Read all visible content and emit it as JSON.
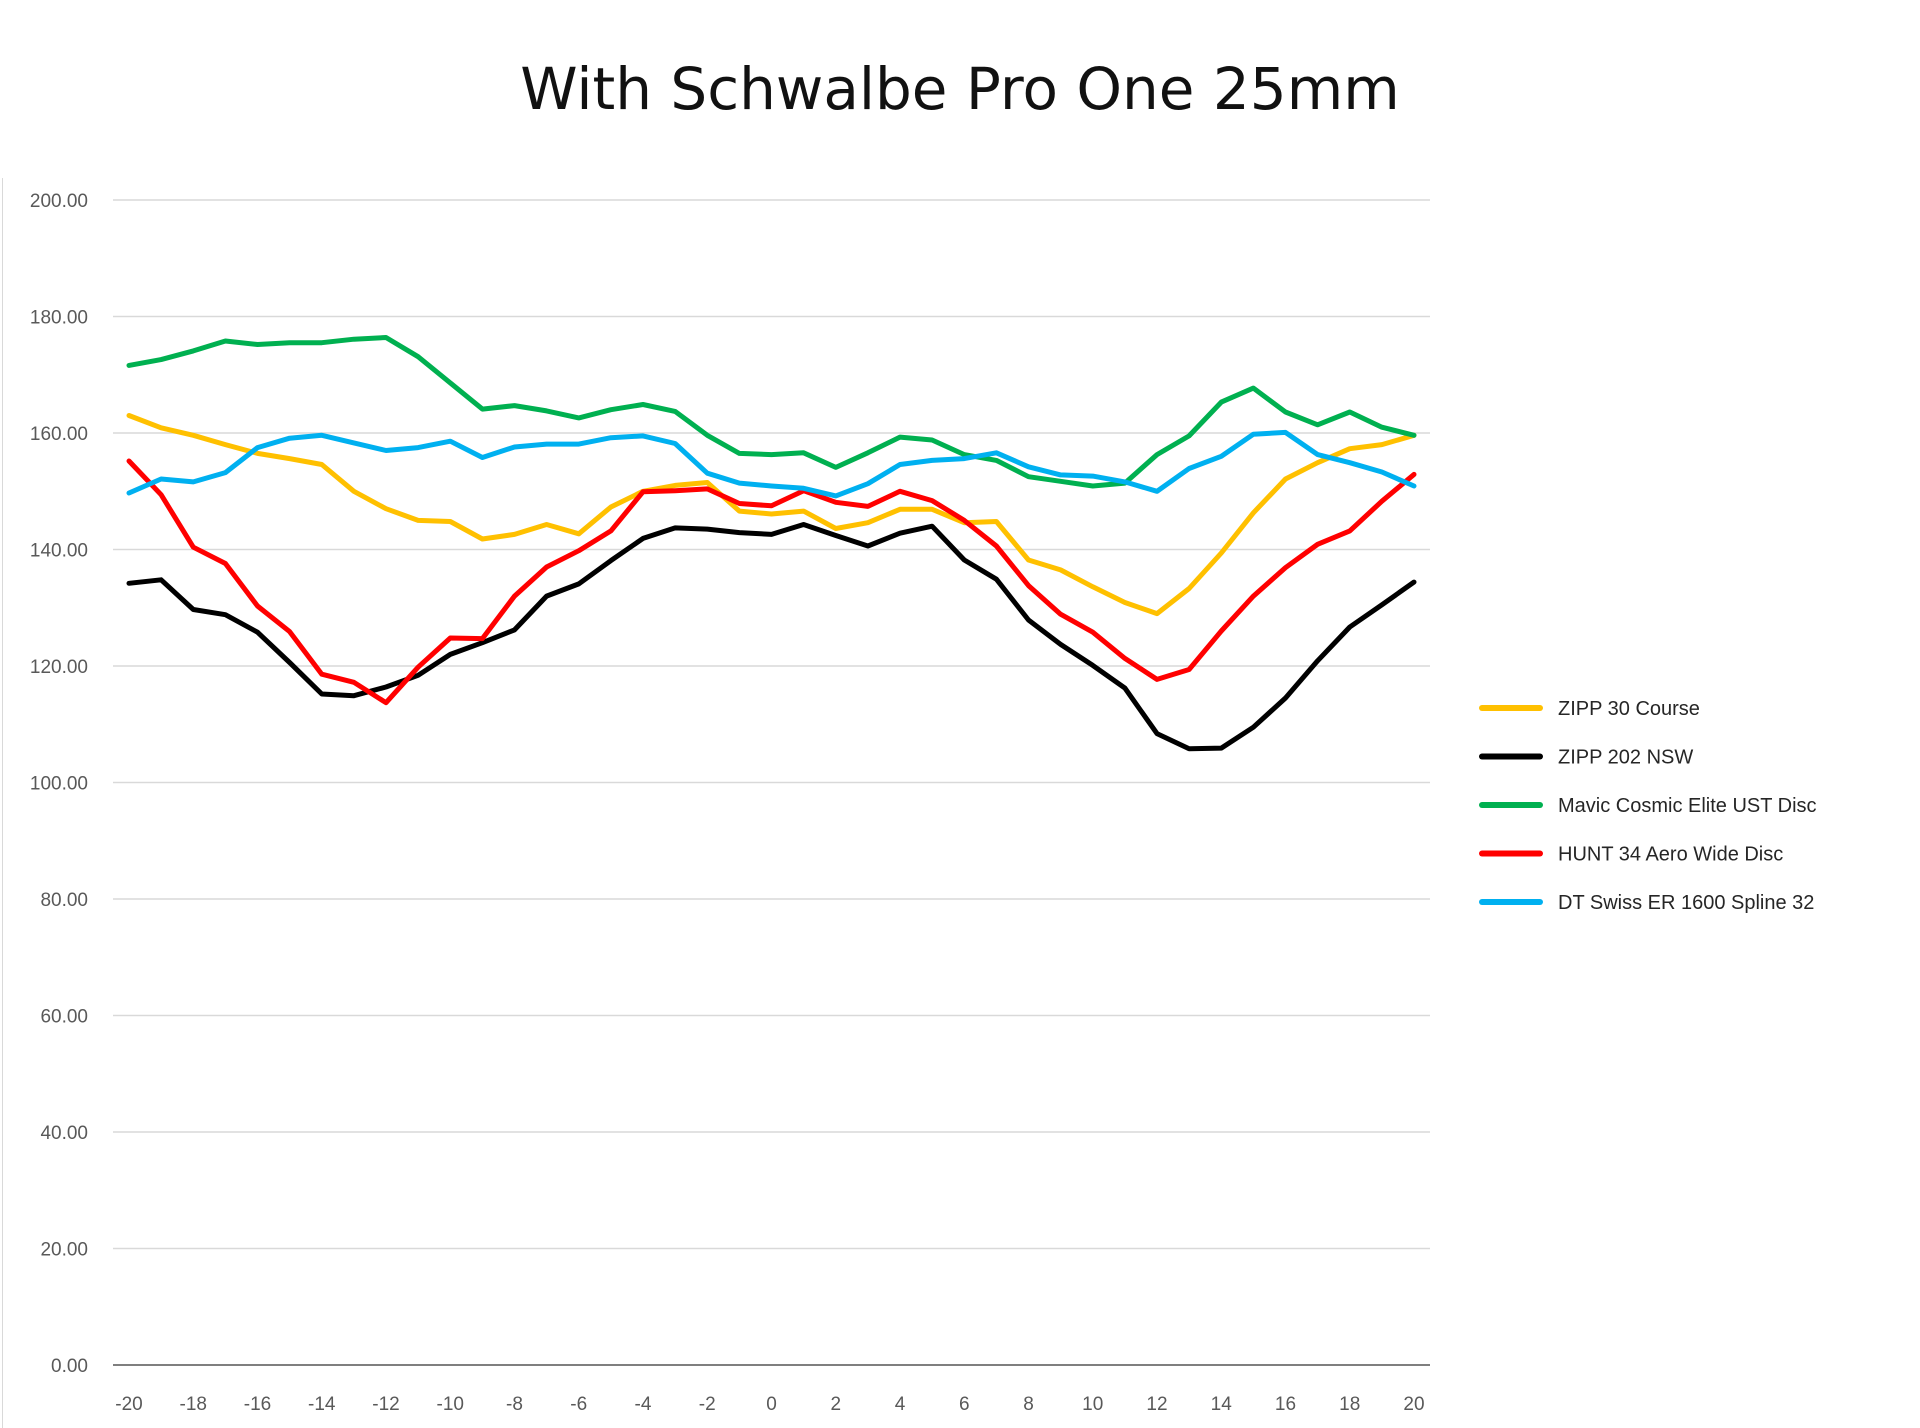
{
  "chart_data": {
    "type": "line",
    "title": "With Schwalbe Pro One 25mm",
    "xlabel": "",
    "ylabel": "",
    "ylim": [
      0,
      200
    ],
    "xlim": [
      -20,
      20
    ],
    "y_ticks": [
      "0.00",
      "20.00",
      "40.00",
      "60.00",
      "80.00",
      "100.00",
      "120.00",
      "140.00",
      "160.00",
      "180.00",
      "200.00"
    ],
    "x_ticks": [
      "-20",
      "-18",
      "-16",
      "-14",
      "-12",
      "-10",
      "-8",
      "-6",
      "-4",
      "-2",
      "0",
      "2",
      "4",
      "6",
      "8",
      "10",
      "12",
      "14",
      "16",
      "18",
      "20"
    ],
    "grid": "horizontal",
    "legend_position": "right",
    "x": [
      -20,
      -19,
      -18,
      -17,
      -16,
      -15,
      -14,
      -13,
      -12,
      -11,
      -10,
      -9,
      -8,
      -7,
      -6,
      -5,
      -4,
      -3,
      -2,
      -1,
      0,
      1,
      2,
      3,
      4,
      5,
      6,
      7,
      8,
      9,
      10,
      11,
      12,
      13,
      14,
      15,
      16,
      17,
      18,
      19,
      20
    ],
    "series": [
      {
        "name": "ZIPP 30 Course",
        "color": "#ffc000",
        "values": [
          163.0,
          160.9,
          159.6,
          158.0,
          156.5,
          155.6,
          154.6,
          150.0,
          147.0,
          145.0,
          144.8,
          141.8,
          142.6,
          144.3,
          142.7,
          147.3,
          150.0,
          151.0,
          151.5,
          146.6,
          146.1,
          146.6,
          143.6,
          144.6,
          146.9,
          146.9,
          144.6,
          144.8,
          138.2,
          136.5,
          133.6,
          130.9,
          129.0,
          133.3,
          139.4,
          146.3,
          152.1,
          154.9,
          157.3,
          158.0,
          159.6
        ]
      },
      {
        "name": "ZIPP 202 NSW",
        "color": "#000000",
        "values": [
          134.2,
          134.8,
          129.7,
          128.8,
          125.8,
          120.6,
          115.2,
          114.9,
          116.4,
          118.4,
          122.0,
          124.0,
          126.2,
          132.0,
          134.1,
          138.1,
          141.9,
          143.7,
          143.5,
          142.9,
          142.6,
          144.3,
          142.4,
          140.6,
          142.8,
          144.0,
          138.2,
          134.9,
          127.9,
          123.7,
          120.1,
          116.2,
          108.4,
          105.8,
          105.9,
          109.5,
          114.5,
          120.9,
          126.7,
          130.5,
          134.4
        ]
      },
      {
        "name": "Mavic Cosmic Elite UST Disc",
        "color": "#00b050",
        "values": [
          171.6,
          172.6,
          174.1,
          175.8,
          175.2,
          175.5,
          175.5,
          176.1,
          176.4,
          173.1,
          168.6,
          164.1,
          164.7,
          163.8,
          162.6,
          164.0,
          164.9,
          163.7,
          159.6,
          156.5,
          156.3,
          156.6,
          154.1,
          156.6,
          159.3,
          158.8,
          156.3,
          155.3,
          152.5,
          151.7,
          150.9,
          151.4,
          156.3,
          159.5,
          165.3,
          167.7,
          163.6,
          161.4,
          163.6,
          161.0,
          159.6
        ]
      },
      {
        "name": "HUNT 34 Aero Wide Disc",
        "color": "#ff0000",
        "values": [
          155.2,
          149.4,
          140.4,
          137.6,
          130.3,
          125.9,
          118.6,
          117.2,
          113.7,
          119.8,
          124.8,
          124.7,
          132.0,
          137.0,
          139.8,
          143.2,
          149.9,
          150.1,
          150.4,
          147.9,
          147.5,
          150.1,
          148.1,
          147.4,
          150.0,
          148.4,
          145.0,
          140.6,
          133.8,
          128.9,
          125.8,
          121.3,
          117.7,
          119.4,
          126.0,
          132.0,
          136.9,
          140.9,
          143.2,
          148.3,
          152.9
        ]
      },
      {
        "name": "DT Swiss ER 1600 Spline 32",
        "color": "#00b0f0",
        "values": [
          149.7,
          152.1,
          151.6,
          153.2,
          157.5,
          159.1,
          159.6,
          158.3,
          157.0,
          157.5,
          158.6,
          155.8,
          157.6,
          158.1,
          158.1,
          159.2,
          159.5,
          158.2,
          153.1,
          151.4,
          150.9,
          150.5,
          149.2,
          151.3,
          154.6,
          155.3,
          155.6,
          156.6,
          154.2,
          152.8,
          152.6,
          151.6,
          150.0,
          153.9,
          156.0,
          159.8,
          160.1,
          156.3,
          154.9,
          153.3,
          150.9
        ]
      }
    ]
  }
}
